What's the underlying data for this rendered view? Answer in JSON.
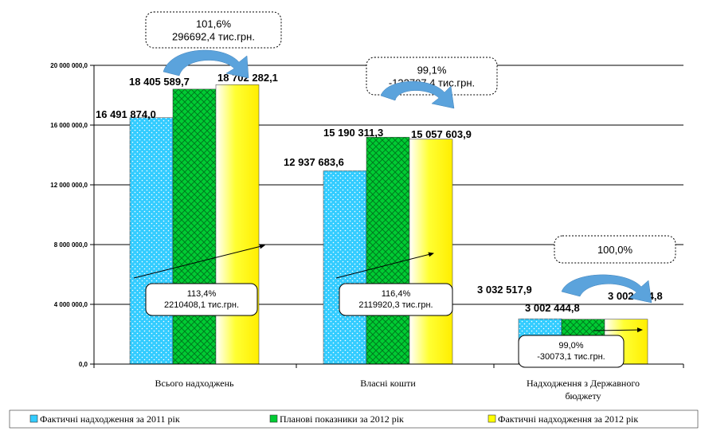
{
  "chart_data": {
    "type": "bar",
    "categories": [
      "Всього надходжень",
      "Власні кошти",
      "Надходження з Державного бюджету"
    ],
    "category_lines": [
      [
        "Всього надходжень"
      ],
      [
        "Власні кошти"
      ],
      [
        "Надходження з Державного",
        "бюджету"
      ]
    ],
    "series": [
      {
        "name": "Фактичні надходження за 2011 рік",
        "values": [
          16491874.0,
          12937683.6,
          3032517.9
        ],
        "labels": [
          "16 491 874,0",
          "12 937 683,6",
          "3 032 517,9"
        ],
        "color": "#33ccff"
      },
      {
        "name": "Планові показники за 2012 рік",
        "values": [
          18405589.7,
          15190311.3,
          3002444.8
        ],
        "labels": [
          "18 405 589,7",
          "15 190 311,3",
          "3 002 444,8"
        ],
        "color": "#00cc33"
      },
      {
        "name": "Фактичні надходження за 2012 рік",
        "values": [
          18702282.1,
          15057603.9,
          3002444.8
        ],
        "labels": [
          "18 702 282,1",
          "15 057 603,9",
          "3 002 444,8"
        ],
        "color": "#ffff00"
      }
    ],
    "yticks": [
      0,
      4000000,
      8000000,
      12000000,
      16000000,
      20000000
    ],
    "ytick_labels": [
      "0,0",
      "4 000 000,0",
      "8 000 000,0",
      "12 000 000,0",
      "16 000 000,0",
      "20 000 000,0"
    ],
    "ylim": [
      0,
      20000000
    ],
    "grid": true,
    "legend_position": "bottom",
    "top_callouts": [
      {
        "lines": [
          "101,6%",
          "296692,4 тис.грн."
        ]
      },
      {
        "lines": [
          "99,1%",
          "-132707,4 тис.грн."
        ]
      },
      {
        "lines": [
          "100,0%"
        ]
      }
    ],
    "growth_callouts": [
      {
        "lines": [
          "113,4%",
          "2210408,1 тис.грн."
        ]
      },
      {
        "lines": [
          "116,4%",
          "2119920,3 тис.грн."
        ]
      },
      {
        "lines": [
          "99,0%",
          "-30073,1 тис.грн."
        ]
      }
    ]
  }
}
